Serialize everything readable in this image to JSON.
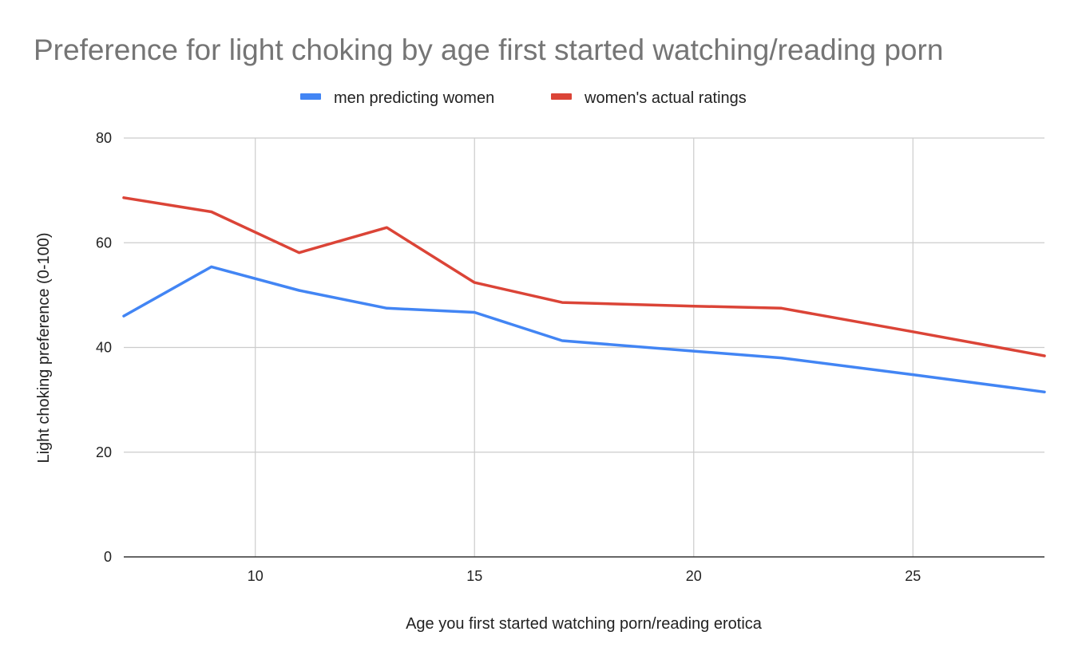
{
  "chart_data": {
    "type": "line",
    "title": "Preference for light choking by age first started watching/reading porn",
    "xlabel": "Age you first started watching porn/reading erotica",
    "ylabel": "Light choking preference (0-100)",
    "xlim": [
      7,
      28
    ],
    "ylim": [
      0,
      80
    ],
    "x_ticks": [
      10,
      15,
      20,
      25
    ],
    "y_ticks": [
      0,
      20,
      40,
      60,
      80
    ],
    "grid": true,
    "legend_position": "top",
    "series": [
      {
        "name": "men predicting women",
        "color": "#4285F4",
        "x": [
          7,
          9,
          11,
          13,
          15,
          17,
          20,
          22,
          25,
          28
        ],
        "y": [
          46,
          55.4,
          50.9,
          47.5,
          46.7,
          41.3,
          39.3,
          38,
          34.8,
          31.5
        ]
      },
      {
        "name": "women's actual ratings",
        "color": "#DB4437",
        "x": [
          7,
          9,
          11,
          13,
          15,
          17,
          20,
          22,
          25,
          28
        ],
        "y": [
          68.6,
          65.9,
          58.1,
          62.9,
          52.4,
          48.6,
          47.9,
          47.5,
          43,
          38.4
        ]
      }
    ]
  }
}
